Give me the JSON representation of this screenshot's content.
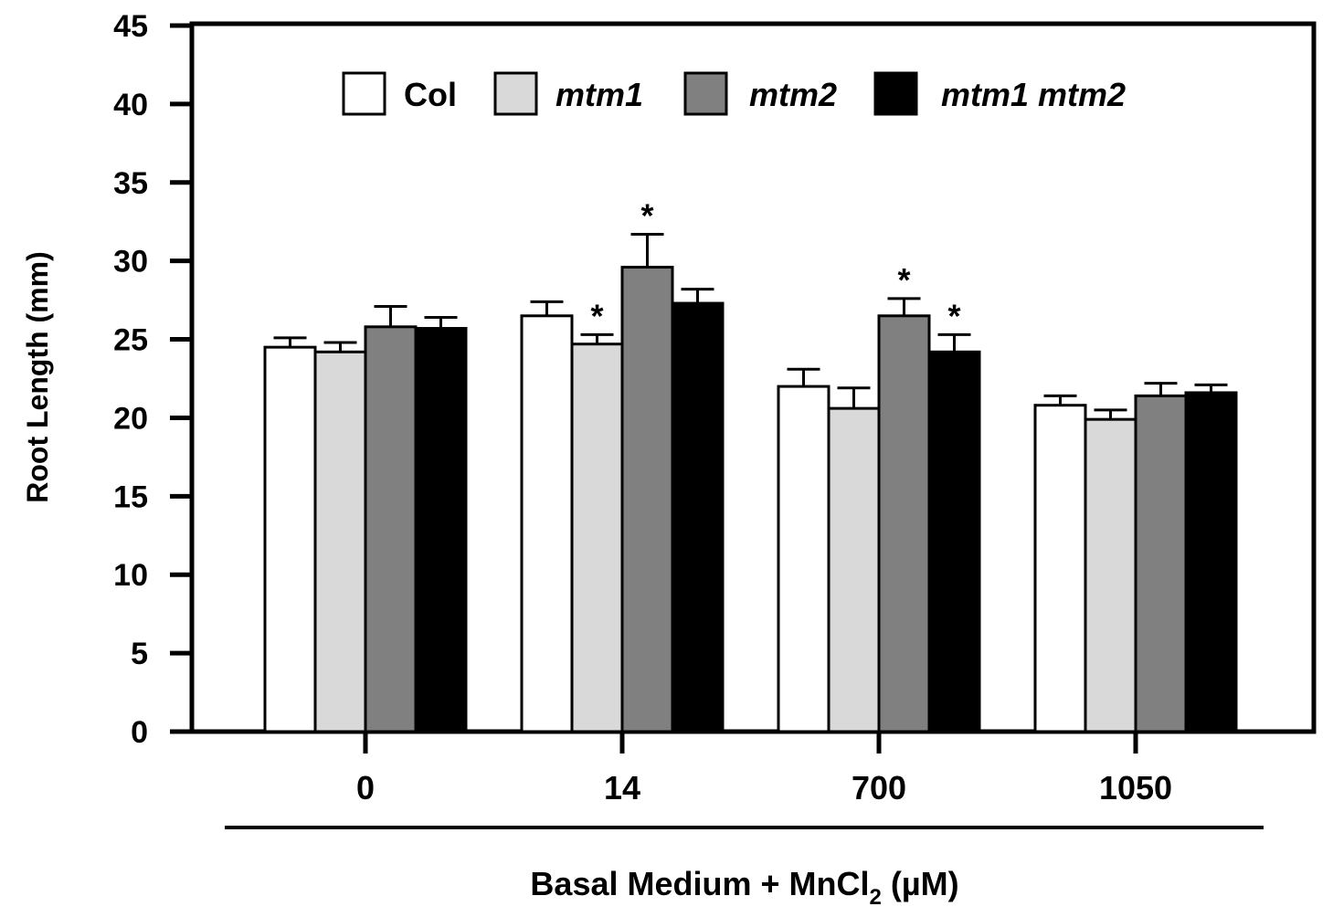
{
  "chart_data": {
    "type": "bar",
    "title": "",
    "ylabel": "Root Length (mm)",
    "xlabel_parts": {
      "prefix": "Basal Medium + MnCl",
      "subscript": "2",
      "suffix": " (µM)"
    },
    "ylim": [
      0,
      45
    ],
    "yticks": [
      "0",
      "5",
      "10",
      "15",
      "20",
      "25",
      "30",
      "35",
      "40",
      "45"
    ],
    "categories": [
      "0",
      "14",
      "700",
      "1050"
    ],
    "legend_position": "top",
    "grid": false,
    "series": [
      {
        "name": "Col",
        "italic": false,
        "color": "#ffffff",
        "values": [
          24.5,
          26.5,
          22.0,
          20.8
        ],
        "errors": [
          0.6,
          0.9,
          1.1,
          0.6
        ],
        "significant": [
          false,
          false,
          false,
          false
        ]
      },
      {
        "name": "mtm1",
        "italic": true,
        "color": "#d9d9d9",
        "values": [
          24.2,
          24.7,
          20.6,
          19.9
        ],
        "errors": [
          0.6,
          0.6,
          1.3,
          0.6
        ],
        "significant": [
          false,
          true,
          false,
          false
        ]
      },
      {
        "name": "mtm2",
        "italic": true,
        "color": "#808080",
        "values": [
          25.8,
          29.6,
          26.5,
          21.4
        ],
        "errors": [
          1.3,
          2.1,
          1.1,
          0.8
        ],
        "significant": [
          false,
          true,
          true,
          false
        ]
      },
      {
        "name": "mtm1 mtm2",
        "italic": true,
        "color": "#000000",
        "values": [
          25.7,
          27.3,
          24.2,
          21.6
        ],
        "errors": [
          0.7,
          0.9,
          1.1,
          0.5
        ],
        "significant": [
          false,
          false,
          true,
          false
        ]
      }
    ],
    "significance_marker": "*"
  }
}
